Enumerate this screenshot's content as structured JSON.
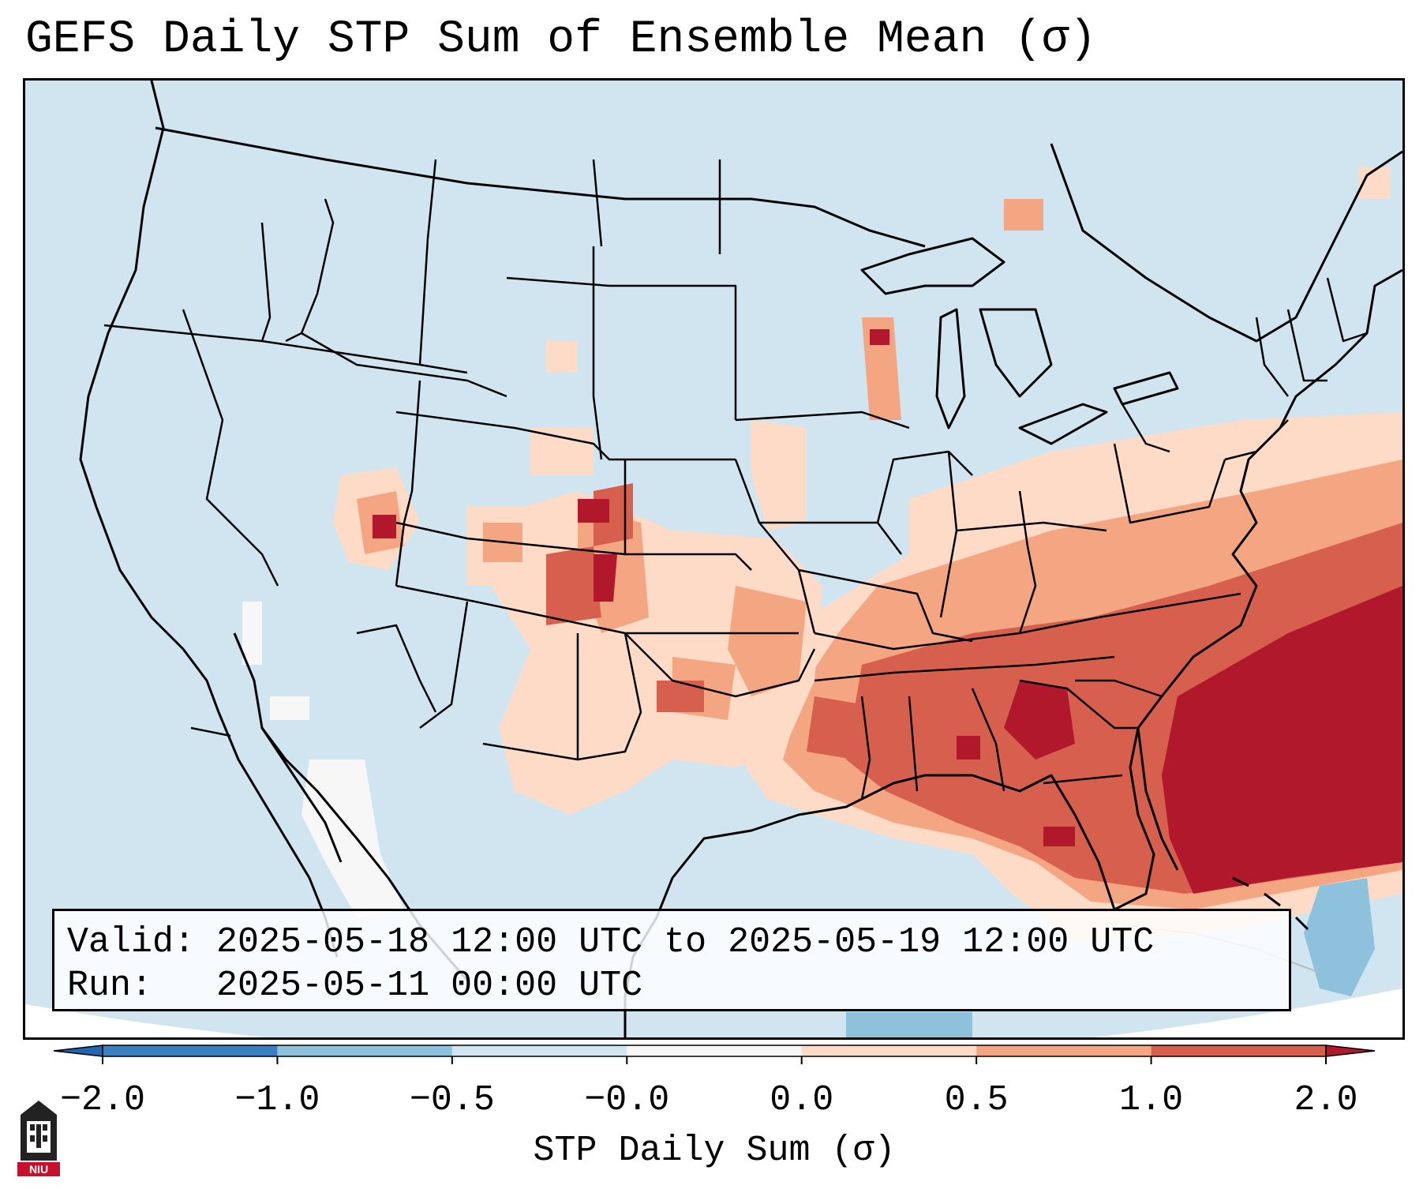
{
  "header": {
    "title": "GEFS Daily STP Sum of Ensemble Mean (σ)"
  },
  "info": {
    "valid_line": "Valid: 2025-05-18 12:00 UTC to 2025-05-19 12:00 UTC",
    "run_line": "Run:   2025-05-11 00:00 UTC"
  },
  "colorbar": {
    "label": "STP Daily Sum (σ)",
    "ticks": [
      "−2.0",
      "−1.0",
      "−0.5",
      "−0.0",
      "0.0",
      "0.5",
      "1.0",
      "2.0"
    ],
    "bins": [
      {
        "color": "#3a7fc0"
      },
      {
        "color": "#8ec1dc"
      },
      {
        "color": "#d1e5f0"
      },
      {
        "color": "#f7f7f7"
      },
      {
        "color": "#fddbc7"
      },
      {
        "color": "#f4a582"
      },
      {
        "color": "#d6604d"
      }
    ],
    "under_color": "#2166ac",
    "over_color": "#b2182b"
  },
  "map": {
    "background_color": "#d1e5f0",
    "outside_domain_color": "#ffffff",
    "border_color": "#000000"
  },
  "logo": {
    "text": "NIU",
    "icon": "niu-tower-logo"
  }
}
